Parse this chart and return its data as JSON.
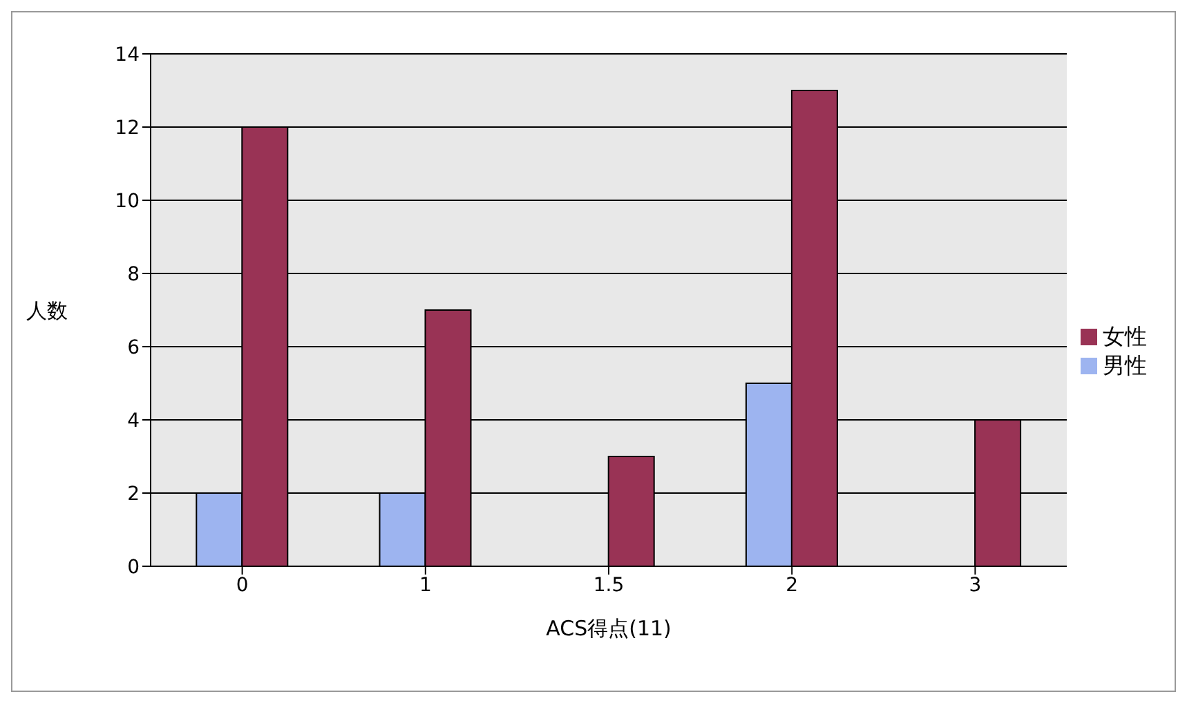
{
  "chart_data": {
    "type": "bar",
    "xlabel": "ACS得点(11)",
    "ylabel": "人数",
    "categories": [
      "0",
      "1",
      "1.5",
      "2",
      "3"
    ],
    "series": [
      {
        "name": "男性",
        "color": "#9db4f0",
        "values": [
          2,
          2,
          0,
          5,
          0
        ]
      },
      {
        "name": "女性",
        "color": "#993355",
        "values": [
          12,
          7,
          3,
          13,
          4
        ]
      }
    ],
    "ylim": [
      0,
      14
    ],
    "yticks": [
      0,
      2,
      4,
      6,
      8,
      10,
      12,
      14
    ],
    "grid": "y",
    "legend": "right"
  }
}
